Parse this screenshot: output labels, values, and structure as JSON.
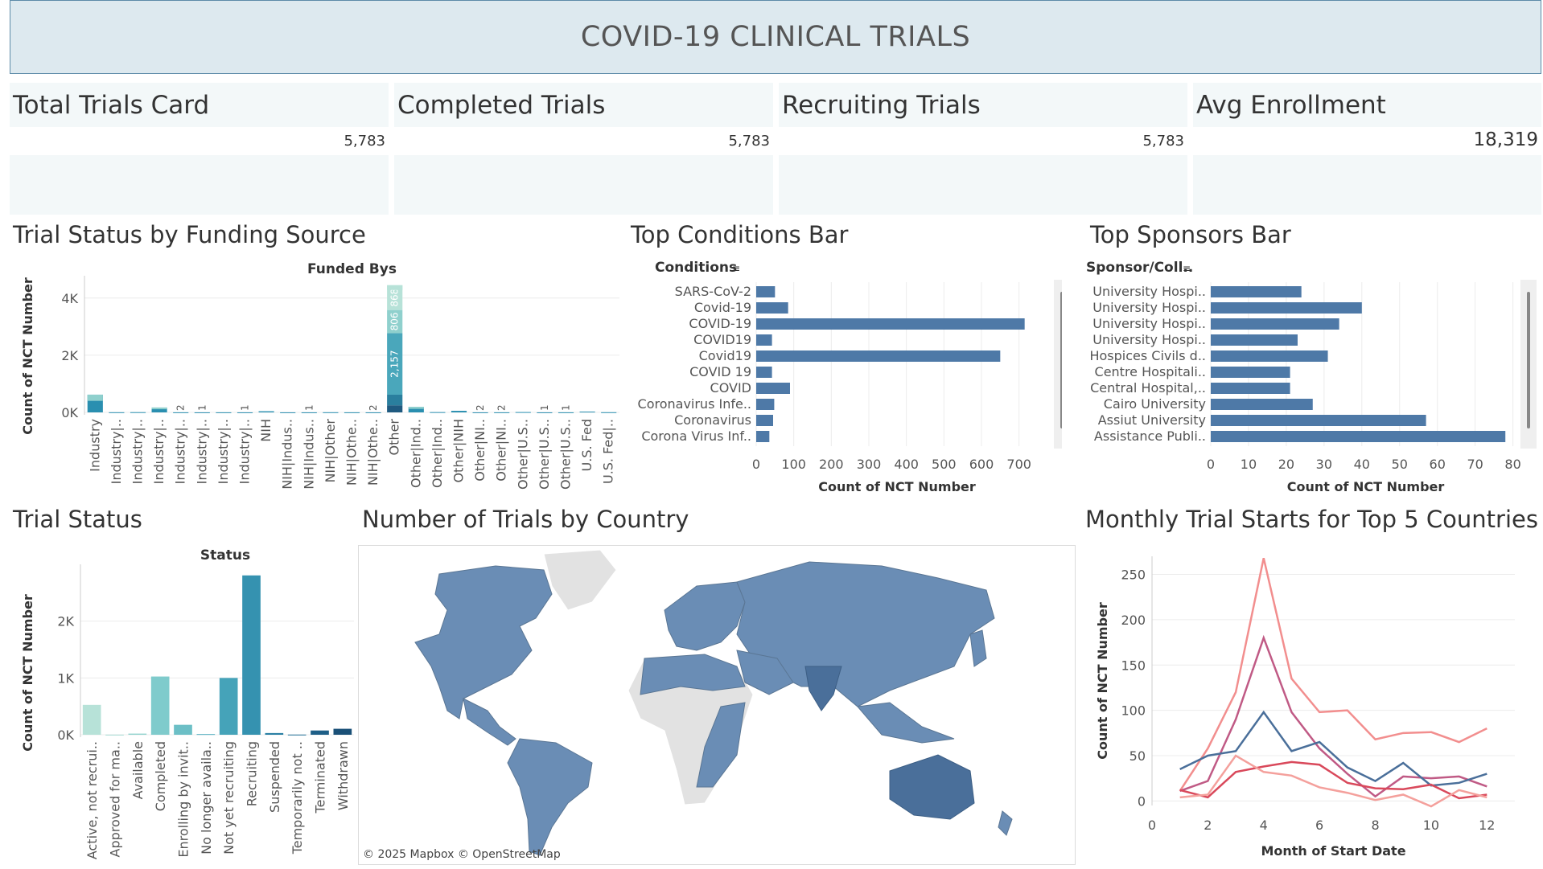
{
  "header": {
    "title": "COVID-19 CLINICAL TRIALS"
  },
  "cards": [
    {
      "title": "Total Trials Card",
      "value": "5,783"
    },
    {
      "title": "Completed Trials",
      "value": "5,783"
    },
    {
      "title": "Recruiting Trials",
      "value": "5,783"
    },
    {
      "title": "Avg Enrollment",
      "value": "18,319"
    }
  ],
  "sections": {
    "funding": "Trial Status by Funding Source",
    "conditions": "Top Conditions Bar",
    "sponsors": "Top Sponsors Bar",
    "status": "Trial Status",
    "country": "Number of Trials by Country",
    "monthly": "Monthly Trial Starts for Top 5 Countries"
  },
  "map": {
    "attribution": "© 2025 Mapbox © OpenStreetMap"
  },
  "colors": {
    "bar_blue": "#4e79a7",
    "teal_dark": "#2a7f9e",
    "teal_light": "#b7e2d8"
  },
  "chart_data": [
    {
      "id": "funding",
      "type": "bar",
      "stacked": true,
      "title": "Trial Status by Funding Source",
      "column_header": "Funded Bys",
      "ylabel": "Count of NCT Number",
      "ylim": [
        0,
        4500
      ],
      "yticks": [
        {
          "v": 0,
          "label": "0K"
        },
        {
          "v": 2000,
          "label": "2K"
        },
        {
          "v": 4000,
          "label": "4K"
        }
      ],
      "categories": [
        "Industry",
        "Industry|..",
        "Industry|..",
        "Industry|..",
        "Industry|..",
        "Industry|..",
        "Industry|..",
        "Industry|..",
        "NIH",
        "NIH|Indus..",
        "NIH|Indus..",
        "NIH|Other",
        "NIH|Othe..",
        "NIH|Othe..",
        "Other",
        "Other|Ind..",
        "Other|Ind..",
        "Other|NIH",
        "Other|NI..",
        "Other|NI..",
        "Other|U.S..",
        "Other|U.S..",
        "Other|U.S..",
        "U.S. Fed",
        "U.S. Fed|.."
      ],
      "totals": [
        620,
        5,
        8,
        170,
        3,
        2,
        3,
        2,
        40,
        2,
        2,
        5,
        3,
        2,
        4450,
        190,
        10,
        55,
        2,
        3,
        12,
        2,
        3,
        28,
        6
      ],
      "small_labels": [
        {
          "i": 4,
          "t": "2"
        },
        {
          "i": 5,
          "t": "1"
        },
        {
          "i": 7,
          "t": "1"
        },
        {
          "i": 10,
          "t": "1"
        },
        {
          "i": 13,
          "t": "2"
        },
        {
          "i": 18,
          "t": "2"
        },
        {
          "i": 19,
          "t": "2"
        },
        {
          "i": 21,
          "t": "1"
        },
        {
          "i": 22,
          "t": "1"
        }
      ],
      "other_segments": [
        {
          "value": 2157,
          "label": "2,157"
        },
        {
          "value": 806,
          "label": "806"
        },
        {
          "value": 868,
          "label": "868"
        }
      ]
    },
    {
      "id": "conditions",
      "type": "bar",
      "orientation": "horizontal",
      "title": "Top Conditions Bar",
      "column_header": "Conditions",
      "xlabel": "Count of NCT Number",
      "xlim": [
        0,
        750
      ],
      "xticks": [
        0,
        100,
        200,
        300,
        400,
        500,
        600,
        700
      ],
      "categories": [
        "SARS-CoV-2",
        "Covid-19",
        "COVID-19",
        "COVID19",
        "Covid19",
        "COVID 19",
        "COVID",
        "Coronavirus Infe..",
        "Coronavirus",
        "Corona Virus Inf.."
      ],
      "values": [
        50,
        85,
        715,
        42,
        650,
        42,
        90,
        48,
        45,
        35
      ]
    },
    {
      "id": "sponsors",
      "type": "bar",
      "orientation": "horizontal",
      "title": "Top Sponsors Bar",
      "column_header": "Sponsor/Coll..",
      "xlabel": "Count of NCT Number",
      "xlim": [
        0,
        82
      ],
      "xticks": [
        0,
        10,
        20,
        30,
        40,
        50,
        60,
        70,
        80
      ],
      "categories": [
        "University Hospi..",
        "University Hospi..",
        "University Hospi..",
        "University Hospi..",
        "Hospices Civils d..",
        "Centre Hospitali..",
        "Central Hospital,..",
        "Cairo University",
        "Assiut University",
        "Assistance Publi.."
      ],
      "values": [
        24,
        40,
        34,
        23,
        31,
        21,
        21,
        27,
        57,
        78
      ]
    },
    {
      "id": "status",
      "type": "bar",
      "title": "Trial Status",
      "column_header": "Status",
      "ylabel": "Count of NCT Number",
      "ylim": [
        0,
        3000
      ],
      "yticks": [
        {
          "v": 0,
          "label": "0K"
        },
        {
          "v": 1000,
          "label": "1K"
        },
        {
          "v": 2000,
          "label": "2K"
        }
      ],
      "categories": [
        "Active, not recrui..",
        "Approved for ma..",
        "Available",
        "Completed",
        "Enrolling by invit..",
        "No longer availa..",
        "Not yet recruiting",
        "Recruiting",
        "Suspended",
        "Temporarily not ..",
        "Terminated",
        "Withdrawn"
      ],
      "values": [
        526,
        2,
        20,
        1025,
        175,
        12,
        1000,
        2805,
        30,
        3,
        75,
        105
      ]
    },
    {
      "id": "monthly",
      "type": "line",
      "title": "Monthly Trial Starts for Top 5 Countries",
      "xlabel": "Month of Start Date",
      "ylabel": "Count of NCT Number",
      "xlim": [
        0,
        13
      ],
      "ylim": [
        -5,
        270
      ],
      "xticks": [
        0,
        2,
        4,
        6,
        8,
        10,
        12
      ],
      "yticks": [
        0,
        50,
        100,
        150,
        200,
        250
      ],
      "x": [
        1,
        2,
        3,
        4,
        5,
        6,
        7,
        8,
        9,
        10,
        11,
        12
      ],
      "series": [
        {
          "color": "#f28e8e",
          "values": [
            11,
            58,
            120,
            268,
            135,
            98,
            100,
            68,
            75,
            76,
            65,
            80
          ]
        },
        {
          "color": "#c05a85",
          "values": [
            11,
            22,
            90,
            180,
            98,
            58,
            30,
            5,
            27,
            25,
            27,
            16
          ]
        },
        {
          "color": "#4a6f9a",
          "values": [
            35,
            50,
            55,
            98,
            55,
            65,
            37,
            22,
            42,
            17,
            20,
            30
          ]
        },
        {
          "color": "#d9495b",
          "values": [
            12,
            4,
            32,
            38,
            43,
            40,
            20,
            14,
            13,
            18,
            3,
            7
          ]
        },
        {
          "color": "#f4a09c",
          "values": [
            4,
            7,
            50,
            32,
            28,
            15,
            9,
            1,
            7,
            -6,
            12,
            4
          ]
        }
      ]
    }
  ]
}
